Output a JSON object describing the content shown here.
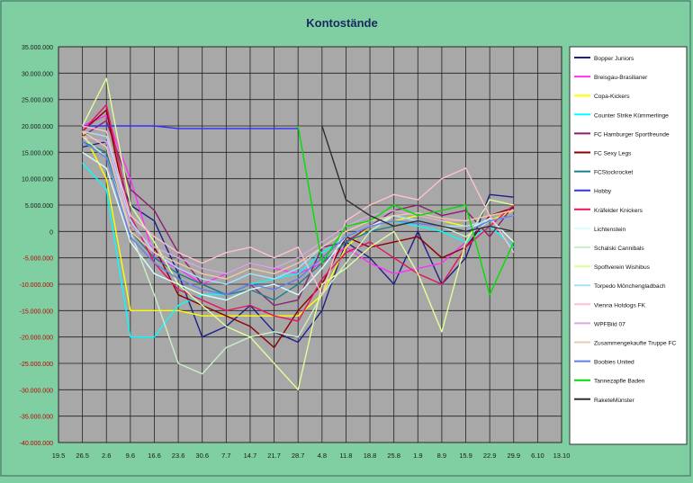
{
  "chart_data": {
    "type": "line",
    "title": "Kontostände",
    "xlabel": "",
    "ylabel": "",
    "ylim": [
      -40000000,
      35000000
    ],
    "grid": true,
    "legend_position": "right",
    "y_ticks": [
      {
        "value": 35000000,
        "label": "35.000.000"
      },
      {
        "value": 30000000,
        "label": "30.000.000"
      },
      {
        "value": 25000000,
        "label": "25.000.000"
      },
      {
        "value": 20000000,
        "label": "20.000.000"
      },
      {
        "value": 15000000,
        "label": "15.000.000"
      },
      {
        "value": 10000000,
        "label": "10.000.000"
      },
      {
        "value": 5000000,
        "label": "5.000.000"
      },
      {
        "value": 0,
        "label": "0"
      },
      {
        "value": -5000000,
        "label": "-5.000.000"
      },
      {
        "value": -10000000,
        "label": "-10.000.000"
      },
      {
        "value": -15000000,
        "label": "-15.000.000"
      },
      {
        "value": -20000000,
        "label": "-20.000.000"
      },
      {
        "value": -25000000,
        "label": "-25.000.000"
      },
      {
        "value": -30000000,
        "label": "-30.000.000"
      },
      {
        "value": -35000000,
        "label": "-35.000.000"
      },
      {
        "value": -40000000,
        "label": "-40.000.000"
      }
    ],
    "x_ticks": [
      "19.5",
      "26.5",
      "2.6",
      "9.6",
      "16.6",
      "23.6",
      "30.6",
      "7.7",
      "14.7",
      "21.7",
      "28.7",
      "4.8",
      "11.8",
      "18.8",
      "25.8",
      "1.9",
      "8.9",
      "15.9",
      "22.9",
      "29.9",
      "6.10",
      "13.10"
    ],
    "series": [
      {
        "name": "Bopper Juniors",
        "color": "#1f1f8c",
        "values": [
          null,
          16000000,
          17000000,
          5000000,
          2000000,
          -8000000,
          -20000000,
          -18000000,
          -14000000,
          -19000000,
          -21000000,
          -15000000,
          -2000000,
          -5000000,
          -10000000,
          0,
          -10000000,
          -5000000,
          7000000,
          6500000,
          null,
          null
        ]
      },
      {
        "name": "Breisgau-Brasilianer",
        "color": "#ff30ff",
        "values": [
          null,
          20000000,
          22000000,
          10000000,
          -5000000,
          -7000000,
          -10000000,
          -8000000,
          -6000000,
          -7000000,
          -8000000,
          -6000000,
          -3000000,
          -6000000,
          -8000000,
          -7000000,
          -6000000,
          -2000000,
          1000000,
          5000000,
          null,
          null
        ]
      },
      {
        "name": "Copa-Kickers",
        "color": "#ffff00",
        "values": [
          null,
          19000000,
          10000000,
          -15000000,
          -15000000,
          -15000000,
          -16000000,
          -16000000,
          -16000000,
          -16000000,
          -16000000,
          -12000000,
          -3000000,
          1000000,
          2000000,
          3000000,
          2000000,
          1000000,
          2000000,
          4000000,
          null,
          null
        ]
      },
      {
        "name": "Counter Strike Kümmerlinge",
        "color": "#00ffff",
        "values": [
          null,
          13000000,
          8000000,
          -20000000,
          -20000000,
          -14000000,
          -12000000,
          -12000000,
          -10000000,
          -9000000,
          -8000000,
          -4000000,
          -1000000,
          1000000,
          2000000,
          1000000,
          0,
          -2000000,
          1000000,
          -3000000,
          null,
          null
        ]
      },
      {
        "name": "FC Hamburger Sportfreunde",
        "color": "#8c1f6e",
        "values": [
          null,
          18000000,
          21000000,
          8000000,
          4000000,
          -4000000,
          -10000000,
          -12000000,
          -10000000,
          -14000000,
          -13000000,
          -3000000,
          -2000000,
          1000000,
          4000000,
          5000000,
          3000000,
          4000000,
          -1000000,
          5000000,
          null,
          null
        ]
      },
      {
        "name": "FC Sexy Legs",
        "color": "#8c0000",
        "values": [
          null,
          19000000,
          23000000,
          1000000,
          -3000000,
          -12000000,
          -14000000,
          -16000000,
          -18000000,
          -22000000,
          -15000000,
          -10000000,
          -1000000,
          -3000000,
          -2000000,
          -1000000,
          -5000000,
          -3000000,
          3000000,
          4500000,
          null,
          null
        ]
      },
      {
        "name": "FCStockrocket",
        "color": "#1f7f8c",
        "values": [
          null,
          17000000,
          15000000,
          0,
          -5000000,
          -8000000,
          -10000000,
          -12000000,
          -11000000,
          -13000000,
          -10000000,
          -6000000,
          -2000000,
          0,
          1000000,
          2000000,
          1000000,
          0,
          2000000,
          3000000,
          null,
          null
        ]
      },
      {
        "name": "Hobby",
        "color": "#3030ff",
        "values": [
          null,
          20000000,
          20000000,
          20000000,
          20000000,
          19500000,
          19500000,
          19500000,
          19500000,
          19500000,
          19500000,
          null,
          null,
          null,
          null,
          null,
          null,
          null,
          null,
          null,
          null,
          null
        ]
      },
      {
        "name": "Kräfelder Knickers",
        "color": "#e8125f",
        "values": [
          null,
          19000000,
          24000000,
          3000000,
          -6000000,
          -11000000,
          -13000000,
          -15000000,
          -14000000,
          -16000000,
          -17000000,
          -9000000,
          -4000000,
          -2000000,
          -5000000,
          -8000000,
          -10000000,
          -3000000,
          1000000,
          5000000,
          null,
          null
        ]
      },
      {
        "name": "Lichtenstein",
        "color": "#d8ffff",
        "values": [
          null,
          15000000,
          12000000,
          -2000000,
          -8000000,
          -10000000,
          -12000000,
          -13000000,
          -11000000,
          -10000000,
          -12000000,
          -7000000,
          -1000000,
          1000000,
          3000000,
          2000000,
          1000000,
          0,
          2500000,
          -2000000,
          null,
          null
        ]
      },
      {
        "name": "Schalski Cannibals",
        "color": "#c8f0c8",
        "values": [
          null,
          18000000,
          14000000,
          0,
          -12000000,
          -25000000,
          -27000000,
          -22000000,
          -20000000,
          -19000000,
          -20000000,
          -12000000,
          -6000000,
          0,
          3000000,
          2000000,
          1000000,
          -1000000,
          2000000,
          3000000,
          null,
          null
        ]
      },
      {
        "name": "Spoftverein Wishibus",
        "color": "#e0ff9a",
        "values": [
          null,
          20000000,
          29000000,
          5000000,
          -2000000,
          -10000000,
          -14000000,
          -18000000,
          -20000000,
          -25000000,
          -30000000,
          -10000000,
          -7000000,
          -3000000,
          0,
          -8000000,
          -19000000,
          -2000000,
          6000000,
          5000000,
          null,
          null
        ]
      },
      {
        "name": "Torpedo Mönchengladbach",
        "color": "#a8e0ff",
        "values": [
          null,
          19000000,
          18000000,
          2000000,
          -4000000,
          -7000000,
          -9000000,
          -10000000,
          -8000000,
          -9000000,
          -7000000,
          -3000000,
          0,
          2000000,
          3000000,
          2000000,
          1000000,
          1000000,
          2000000,
          3000000,
          null,
          null
        ]
      },
      {
        "name": "Vienna Hotdogs FK",
        "color": "#ffc0d0",
        "values": [
          null,
          20000000,
          19000000,
          3000000,
          -1000000,
          -4000000,
          -6000000,
          -4000000,
          -3000000,
          -5000000,
          -3000000,
          -12000000,
          2000000,
          5000000,
          7000000,
          6000000,
          10000000,
          12000000,
          3000000,
          -4000000,
          null,
          null
        ]
      },
      {
        "name": "WPFBild 07",
        "color": "#d8a8e0",
        "values": [
          null,
          18000000,
          17000000,
          1000000,
          -3000000,
          -5000000,
          -7000000,
          -8000000,
          -6000000,
          -7000000,
          -5000000,
          -2000000,
          1000000,
          3000000,
          4000000,
          3000000,
          2000000,
          2000000,
          3000000,
          4000000,
          null,
          null
        ]
      },
      {
        "name": "Zusammengekaufte Truppe FC",
        "color": "#f0c8a8",
        "values": [
          null,
          19000000,
          16000000,
          0,
          -4000000,
          -6000000,
          -8000000,
          -9000000,
          -7000000,
          -8000000,
          -6000000,
          -3000000,
          0,
          2000000,
          3000000,
          3500000,
          2500000,
          2000000,
          3000000,
          4000000,
          null,
          null
        ]
      },
      {
        "name": "Boobies United",
        "color": "#6080f0",
        "values": [
          null,
          17000000,
          14000000,
          -1000000,
          -6000000,
          -9000000,
          -11000000,
          -12000000,
          -10000000,
          -11000000,
          -9000000,
          -5000000,
          -1000000,
          1000000,
          2000000,
          1500000,
          1000000,
          0,
          2000000,
          3000000,
          null,
          null
        ]
      },
      {
        "name": "Tannezapfle Baden",
        "color": "#00e000",
        "values": [
          null,
          null,
          null,
          null,
          null,
          null,
          null,
          null,
          null,
          null,
          20000000,
          -6000000,
          1000000,
          2000000,
          5000000,
          3000000,
          4000000,
          5000000,
          -12000000,
          -2000000,
          null,
          null
        ]
      },
      {
        "name": "RaketeMünster",
        "color": "#303030",
        "values": [
          null,
          null,
          null,
          null,
          null,
          null,
          null,
          null,
          null,
          null,
          null,
          20000000,
          6000000,
          3000000,
          1000000,
          2000000,
          1000000,
          0,
          1000000,
          0,
          null,
          null
        ]
      }
    ]
  }
}
